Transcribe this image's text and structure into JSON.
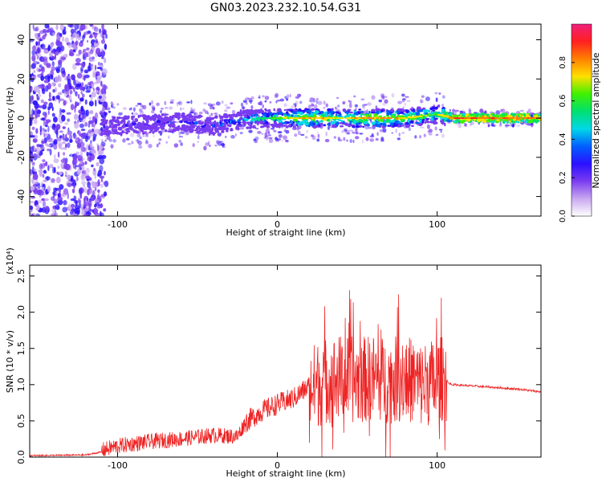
{
  "title": "GN03.2023.232.10.54.G31",
  "colors": {
    "spectrum_stops": [
      "#ffffff",
      "#c8a8f0",
      "#7a3cf0",
      "#2a10ff",
      "#0060ff",
      "#00d8e8",
      "#00e070",
      "#40f000",
      "#ffe000",
      "#ff8000",
      "#ff2020",
      "#f0207a"
    ],
    "snr_line": "#ee2222"
  },
  "chart_data": [
    {
      "type": "heatmap",
      "title": "",
      "xlabel": "Height of straight line (km)",
      "ylabel": "Frequency (Hz)",
      "xlim": [
        -155,
        165
      ],
      "ylim": [
        -50,
        48
      ],
      "xticks": [
        -100,
        0,
        100
      ],
      "yticks": [
        -40,
        -20,
        0,
        20,
        40
      ],
      "colorbar": {
        "label": "Normalized spectral amplitude",
        "range": [
          0.0,
          1.0
        ],
        "ticks": [
          "0.0",
          "0.2",
          "0.4",
          "0.6",
          "0.8"
        ]
      },
      "ridge": {
        "x": [
          -100,
          -80,
          -60,
          -40,
          -25,
          -10,
          0,
          20,
          40,
          60,
          80,
          100,
          110,
          165
        ],
        "y": [
          -4,
          -3,
          -2,
          -4,
          -1,
          0,
          0,
          0,
          0,
          0,
          0,
          2,
          0,
          0
        ],
        "peak_amplitude": [
          0.3,
          0.35,
          0.4,
          0.4,
          0.5,
          0.6,
          0.7,
          0.85,
          0.75,
          0.85,
          0.8,
          0.7,
          0.9,
          0.9
        ]
      }
    },
    {
      "type": "line",
      "title": "",
      "xlabel": "Height of straight line (km)",
      "ylabel": "SNR (10 * v/v)",
      "y_multiplier": "(x10⁴)",
      "xlim": [
        -155,
        165
      ],
      "ylim": [
        0,
        2.65
      ],
      "xticks": [
        -100,
        0,
        100
      ],
      "yticks": [
        "0.0",
        "0.5",
        "1.0",
        "1.5",
        "2.0",
        "2.5"
      ],
      "series": [
        {
          "x": [
            -155,
            -120,
            -110,
            -100,
            -80,
            -60,
            -40,
            -25,
            -20,
            -10,
            0,
            10,
            20,
            30,
            40,
            50,
            60,
            70,
            80,
            90,
            100,
            105,
            107,
            110,
            130,
            150,
            165
          ],
          "y": [
            0.01,
            0.02,
            0.06,
            0.12,
            0.18,
            0.22,
            0.27,
            0.25,
            0.45,
            0.6,
            0.7,
            0.78,
            0.95,
            1.05,
            1.1,
            1.05,
            1.1,
            1.05,
            1.1,
            1.0,
            1.05,
            1.1,
            1.02,
            1.0,
            0.97,
            0.94,
            0.9
          ]
        }
      ]
    }
  ]
}
